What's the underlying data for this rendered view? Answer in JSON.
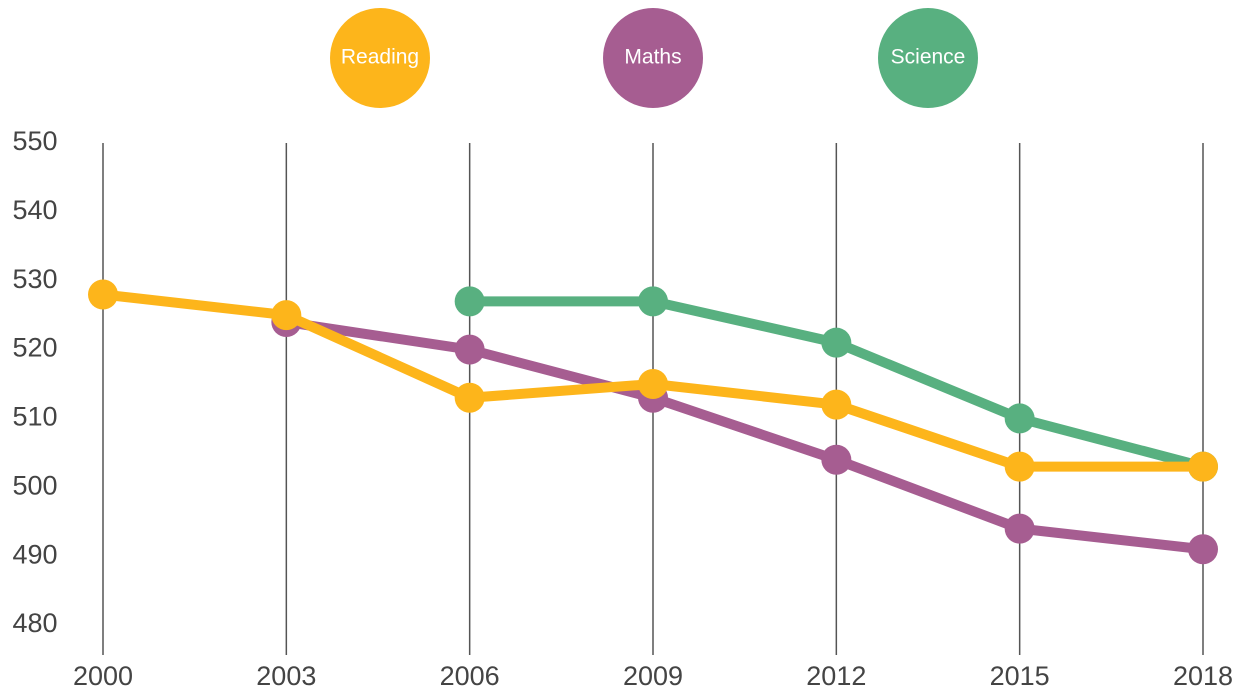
{
  "chart_data": {
    "type": "line",
    "x": [
      2000,
      2003,
      2006,
      2009,
      2012,
      2015,
      2018
    ],
    "xlim": [
      2000,
      2018
    ],
    "xticks": [
      2000,
      2003,
      2006,
      2009,
      2012,
      2015,
      2018
    ],
    "ylim": [
      480,
      550
    ],
    "yticks": [
      480,
      490,
      500,
      510,
      520,
      530,
      540,
      550
    ],
    "grid": true,
    "series": [
      {
        "name": "Reading",
        "color": "#fdb51b",
        "values": [
          528,
          525,
          513,
          515,
          512,
          503,
          503
        ]
      },
      {
        "name": "Maths",
        "color": "#a65d91",
        "values": [
          null,
          524,
          520,
          513,
          504,
          494,
          491
        ]
      },
      {
        "name": "Science",
        "color": "#58b080",
        "values": [
          null,
          null,
          527,
          527,
          521,
          510,
          503
        ]
      }
    ]
  }
}
